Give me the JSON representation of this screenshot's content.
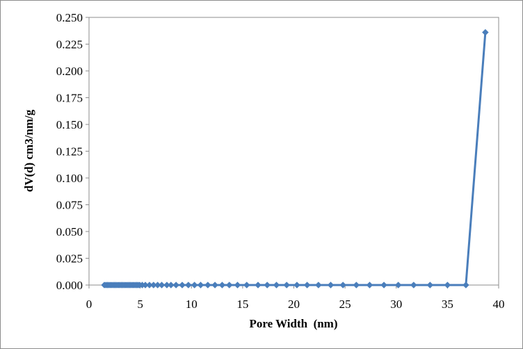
{
  "chart_data": {
    "type": "line",
    "title": "",
    "xlabel": "Pore Width  (nm)",
    "ylabel": "dV(d) cm3/nm/g",
    "xlim": [
      0,
      40
    ],
    "ylim": [
      0,
      0.25
    ],
    "xticks": [
      0,
      5,
      10,
      15,
      20,
      25,
      30,
      35,
      40
    ],
    "yticks": [
      0,
      0.025,
      0.05,
      0.075,
      0.1,
      0.125,
      0.15,
      0.175,
      0.2,
      0.225,
      0.25
    ],
    "xtick_labels": [
      "0",
      "5",
      "10",
      "15",
      "20",
      "25",
      "30",
      "35",
      "40"
    ],
    "ytick_labels": [
      "0.000",
      "0.025",
      "0.050",
      "0.075",
      "0.100",
      "0.125",
      "0.150",
      "0.175",
      "0.200",
      "0.225",
      "0.250"
    ],
    "grid": false,
    "legend": "none",
    "marker": "diamond",
    "series_color": "#4a7ebb",
    "series": [
      {
        "x": [
          1.5,
          1.65,
          1.8,
          1.95,
          2.1,
          2.25,
          2.4,
          2.55,
          2.7,
          2.85,
          3.0,
          3.15,
          3.3,
          3.45,
          3.6,
          3.75,
          3.9,
          4.05,
          4.2,
          4.35,
          4.5,
          4.65,
          4.8,
          4.95,
          5.2,
          5.5,
          5.9,
          6.3,
          6.7,
          7.1,
          7.6,
          8.0,
          8.5,
          9.1,
          9.7,
          10.3,
          10.9,
          11.6,
          12.3,
          13.0,
          13.7,
          14.5,
          15.4,
          16.5,
          17.4,
          18.3,
          19.3,
          20.3,
          21.3,
          22.4,
          23.6,
          24.8,
          26.1,
          27.4,
          28.8,
          30.2,
          31.7,
          33.3,
          35.0,
          36.8,
          38.7
        ],
        "y": [
          0,
          0,
          0,
          0,
          0,
          0,
          0,
          0,
          0,
          0,
          0,
          0,
          0,
          0,
          0,
          0,
          0,
          0,
          0,
          0,
          0,
          0,
          0,
          0,
          0,
          0,
          0,
          0,
          0,
          0,
          0,
          0,
          0,
          0,
          0,
          0,
          0,
          0,
          0,
          0,
          0,
          0,
          0,
          0,
          0,
          0,
          0,
          0,
          0,
          0,
          0,
          0,
          0,
          0,
          0,
          0,
          0,
          0,
          0,
          0,
          0.236
        ]
      }
    ]
  }
}
